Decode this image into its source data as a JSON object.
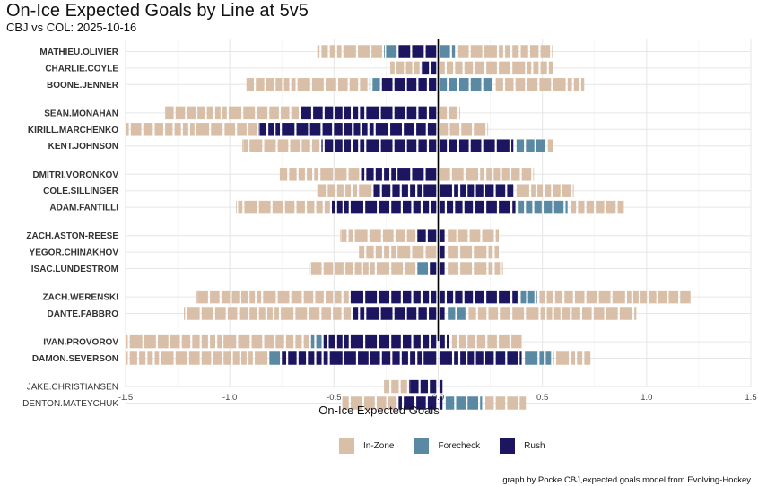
{
  "title": "On-Ice Expected Goals by Line at 5v5",
  "subtitle": "CBJ vs COL: 2025-10-16",
  "caption": "graph by Pocke CBJ,expected goals model from Evolving-Hockey",
  "colors": {
    "In-Zone": "#d9bfa7",
    "Forecheck": "#5a8aa3",
    "Rush": "#1c1560"
  },
  "chart_data": {
    "type": "bar",
    "xlabel": "On-Ice Expected Goals",
    "xlim": [
      -1.5,
      1.5
    ],
    "xticks": [
      "-1.5",
      "-1.0",
      "-0.5",
      "0.0",
      "0.5",
      "1.0",
      "1.5"
    ],
    "grid": true,
    "legend": {
      "position": "bottom",
      "entries": [
        "In-Zone",
        "Forecheck",
        "Rush"
      ]
    },
    "players": [
      {
        "name": "MATHIEU.OLIVIER",
        "bold": true,
        "group": 0,
        "negative": [
          {
            "type": "Rush",
            "value": 0.19
          },
          {
            "type": "Forecheck",
            "value": 0.07
          },
          {
            "type": "In-Zone",
            "value": 0.32
          }
        ],
        "positive": [
          {
            "type": "Forecheck",
            "value": 0.09
          },
          {
            "type": "In-Zone",
            "value": 0.47
          }
        ]
      },
      {
        "name": "CHARLIE.COYLE",
        "bold": true,
        "group": 0,
        "negative": [
          {
            "type": "Rush",
            "value": 0.08
          },
          {
            "type": "In-Zone",
            "value": 0.15
          }
        ],
        "positive": [
          {
            "type": "In-Zone",
            "value": 0.56
          }
        ]
      },
      {
        "name": "BOONE.JENNER",
        "bold": true,
        "group": 0,
        "negative": [
          {
            "type": "Rush",
            "value": 0.27
          },
          {
            "type": "Forecheck",
            "value": 0.06
          },
          {
            "type": "In-Zone",
            "value": 0.59
          }
        ],
        "positive": [
          {
            "type": "Forecheck",
            "value": 0.27
          },
          {
            "type": "In-Zone",
            "value": 0.44
          }
        ]
      },
      {
        "name": "SEAN.MONAHAN",
        "bold": true,
        "group": 1,
        "negative": [
          {
            "type": "Rush",
            "value": 0.66
          },
          {
            "type": "In-Zone",
            "value": 0.65
          }
        ],
        "positive": [
          {
            "type": "In-Zone",
            "value": 0.11
          }
        ]
      },
      {
        "name": "KIRILL.MARCHENKO",
        "bold": true,
        "group": 1,
        "negative": [
          {
            "type": "Rush",
            "value": 0.86
          },
          {
            "type": "In-Zone",
            "value": 0.64
          }
        ],
        "positive": [
          {
            "type": "In-Zone",
            "value": 0.24
          }
        ]
      },
      {
        "name": "KENT.JOHNSON",
        "bold": true,
        "group": 1,
        "negative": [
          {
            "type": "Rush",
            "value": 0.56
          },
          {
            "type": "In-Zone",
            "value": 0.38
          }
        ],
        "positive": [
          {
            "type": "Rush",
            "value": 0.37
          },
          {
            "type": "Forecheck",
            "value": 0.15
          },
          {
            "type": "In-Zone",
            "value": 0.04
          }
        ]
      },
      {
        "name": "DMITRI.VORONKOV",
        "bold": true,
        "group": 2,
        "negative": [
          {
            "type": "Rush",
            "value": 0.37
          },
          {
            "type": "In-Zone",
            "value": 0.39
          }
        ],
        "positive": [
          {
            "type": "In-Zone",
            "value": 0.46
          }
        ]
      },
      {
        "name": "COLE.SILLINGER",
        "bold": true,
        "group": 2,
        "negative": [
          {
            "type": "Rush",
            "value": 0.31
          },
          {
            "type": "In-Zone",
            "value": 0.27
          }
        ],
        "positive": [
          {
            "type": "Rush",
            "value": 0.37
          },
          {
            "type": "In-Zone",
            "value": 0.29
          }
        ]
      },
      {
        "name": "ADAM.FANTILLI",
        "bold": true,
        "group": 2,
        "negative": [
          {
            "type": "Rush",
            "value": 0.51
          },
          {
            "type": "In-Zone",
            "value": 0.46
          }
        ],
        "positive": [
          {
            "type": "Rush",
            "value": 0.38
          },
          {
            "type": "Forecheck",
            "value": 0.25
          },
          {
            "type": "In-Zone",
            "value": 0.27
          }
        ]
      },
      {
        "name": "ZACH.ASTON-REESE",
        "bold": true,
        "group": 3,
        "negative": [
          {
            "type": "Rush",
            "value": 0.1
          },
          {
            "type": "In-Zone",
            "value": 0.37
          }
        ],
        "positive": [
          {
            "type": "Rush",
            "value": 0.04
          },
          {
            "type": "In-Zone",
            "value": 0.26
          }
        ]
      },
      {
        "name": "YEGOR.CHINAKHOV",
        "bold": true,
        "group": 3,
        "negative": [
          {
            "type": "In-Zone",
            "value": 0.38
          }
        ],
        "positive": [
          {
            "type": "Rush",
            "value": 0.04
          },
          {
            "type": "In-Zone",
            "value": 0.26
          }
        ]
      },
      {
        "name": "ISAC.LUNDESTROM",
        "bold": true,
        "group": 3,
        "negative": [
          {
            "type": "Rush",
            "value": 0.04
          },
          {
            "type": "Forecheck",
            "value": 0.06
          },
          {
            "type": "In-Zone",
            "value": 0.52
          }
        ],
        "positive": [
          {
            "type": "Rush",
            "value": 0.04
          },
          {
            "type": "In-Zone",
            "value": 0.28
          }
        ]
      },
      {
        "name": "ZACH.WERENSKI",
        "bold": true,
        "group": 4,
        "negative": [
          {
            "type": "Rush",
            "value": 0.42
          },
          {
            "type": "In-Zone",
            "value": 0.74
          }
        ],
        "positive": [
          {
            "type": "Rush",
            "value": 0.39
          },
          {
            "type": "Forecheck",
            "value": 0.09
          },
          {
            "type": "In-Zone",
            "value": 0.74
          }
        ]
      },
      {
        "name": "DANTE.FABBRO",
        "bold": true,
        "group": 4,
        "negative": [
          {
            "type": "Rush",
            "value": 0.41
          },
          {
            "type": "In-Zone",
            "value": 0.81
          }
        ],
        "positive": [
          {
            "type": "Rush",
            "value": 0.04
          },
          {
            "type": "Forecheck",
            "value": 0.1
          },
          {
            "type": "In-Zone",
            "value": 0.82
          }
        ]
      },
      {
        "name": "IVAN.PROVOROV",
        "bold": true,
        "group": 5,
        "negative": [
          {
            "type": "Rush",
            "value": 0.55
          },
          {
            "type": "Forecheck",
            "value": 0.06
          },
          {
            "type": "In-Zone",
            "value": 0.89
          }
        ],
        "positive": [
          {
            "type": "Rush",
            "value": 0.06
          },
          {
            "type": "In-Zone",
            "value": 0.35
          }
        ]
      },
      {
        "name": "DAMON.SEVERSON",
        "bold": true,
        "group": 5,
        "negative": [
          {
            "type": "Rush",
            "value": 0.75
          },
          {
            "type": "Forecheck",
            "value": 0.06
          },
          {
            "type": "In-Zone",
            "value": 0.69
          }
        ],
        "positive": [
          {
            "type": "Rush",
            "value": 0.41
          },
          {
            "type": "Forecheck",
            "value": 0.15
          },
          {
            "type": "In-Zone",
            "value": 0.18
          }
        ]
      },
      {
        "name": "JAKE.CHRISTIANSEN",
        "bold": false,
        "group": 6,
        "negative": [
          {
            "type": "Rush",
            "value": 0.14
          },
          {
            "type": "In-Zone",
            "value": 0.12
          }
        ],
        "positive": [
          {
            "type": "Rush",
            "value": 0.03
          }
        ]
      },
      {
        "name": "DENTON.MATEYCHUK",
        "bold": false,
        "group": 6,
        "negative": [
          {
            "type": "Rush",
            "value": 0.19
          },
          {
            "type": "In-Zone",
            "value": 0.27
          }
        ],
        "positive": [
          {
            "type": "Rush",
            "value": 0.03
          },
          {
            "type": "Forecheck",
            "value": 0.19
          },
          {
            "type": "In-Zone",
            "value": 0.21
          }
        ]
      }
    ]
  }
}
